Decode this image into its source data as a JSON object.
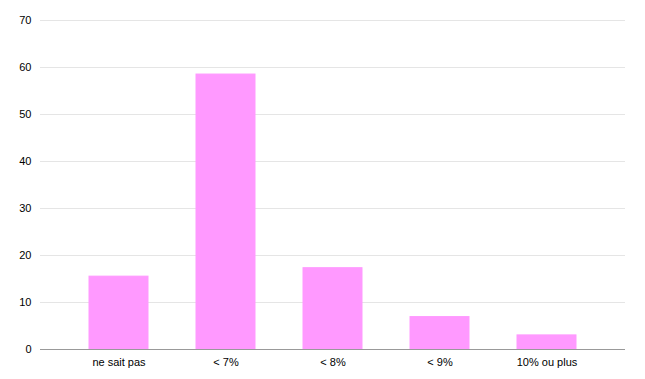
{
  "chart_data": {
    "type": "bar",
    "categories": [
      "ne sait pas",
      "< 7%",
      "< 8%",
      "< 9%",
      "10% ou plus"
    ],
    "values": [
      15.5,
      58.5,
      17.3,
      6.9,
      3.0
    ],
    "color": "#FF99FF",
    "ylim": [
      0,
      70
    ],
    "yticks": [
      0,
      10,
      20,
      30,
      40,
      50,
      60,
      70
    ],
    "grid": true
  }
}
